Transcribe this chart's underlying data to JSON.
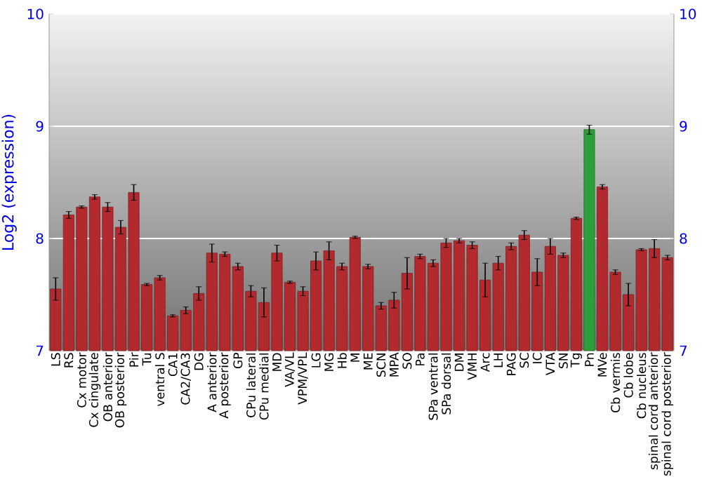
{
  "chart_data": {
    "type": "bar",
    "ylabel": "Log2 (expression)",
    "categories": [
      "LS",
      "RS",
      "Cx motor",
      "Cx cingulate",
      "OB anterior",
      "OB posterior",
      "Pir",
      "Tu",
      "ventral S",
      "CA1",
      "CA2/CA3",
      "DG",
      "A anterior",
      "A posterior",
      "GP",
      "CPu lateral",
      "CPu medial",
      "MD",
      "VA/VL",
      "VPM/VPL",
      "LG",
      "MG",
      "Hb",
      "M",
      "ME",
      "SCN",
      "MPA",
      "SO",
      "Pa",
      "SPa ventral",
      "SPa dorsal",
      "DM",
      "VMH",
      "Arc",
      "LH",
      "PAG",
      "SC",
      "IC",
      "VTA",
      "SN",
      "Tg",
      "Pn",
      "MVe",
      "Cb vermis",
      "Cb lobe",
      "Cb nucleus",
      "spinal cord anterior",
      "spinal cord posterior"
    ],
    "values": [
      7.55,
      8.21,
      8.28,
      8.37,
      8.28,
      8.1,
      8.41,
      7.59,
      7.65,
      7.31,
      7.36,
      7.51,
      7.87,
      7.86,
      7.75,
      7.53,
      7.43,
      7.87,
      7.61,
      7.53,
      7.8,
      7.89,
      7.75,
      8.01,
      7.75,
      7.4,
      7.45,
      7.69,
      7.84,
      7.78,
      7.96,
      7.98,
      7.94,
      7.63,
      7.78,
      7.93,
      8.03,
      7.7,
      7.93,
      7.85,
      8.18,
      8.97,
      8.46,
      7.7,
      7.5,
      7.9,
      7.91,
      7.83
    ],
    "errors": [
      0.1,
      0.03,
      0.01,
      0.02,
      0.04,
      0.06,
      0.07,
      0.01,
      0.02,
      0.01,
      0.03,
      0.06,
      0.08,
      0.02,
      0.03,
      0.05,
      0.13,
      0.07,
      0.01,
      0.04,
      0.08,
      0.08,
      0.03,
      0.01,
      0.02,
      0.03,
      0.07,
      0.14,
      0.02,
      0.03,
      0.04,
      0.02,
      0.03,
      0.15,
      0.06,
      0.03,
      0.04,
      0.12,
      0.07,
      0.02,
      0.01,
      0.04,
      0.02,
      0.02,
      0.1,
      0.01,
      0.08,
      0.02
    ],
    "colors": [
      "#b22a2e",
      "#b22a2e",
      "#b22a2e",
      "#b22a2e",
      "#b22a2e",
      "#b22a2e",
      "#b22a2e",
      "#b22a2e",
      "#b22a2e",
      "#b22a2e",
      "#b22a2e",
      "#b22a2e",
      "#b22a2e",
      "#b22a2e",
      "#b22a2e",
      "#b22a2e",
      "#b22a2e",
      "#b22a2e",
      "#b22a2e",
      "#b22a2e",
      "#b22a2e",
      "#b22a2e",
      "#b22a2e",
      "#b22a2e",
      "#b22a2e",
      "#b22a2e",
      "#b22a2e",
      "#b22a2e",
      "#b22a2e",
      "#b22a2e",
      "#b22a2e",
      "#b22a2e",
      "#b22a2e",
      "#b22a2e",
      "#b22a2e",
      "#b22a2e",
      "#b22a2e",
      "#b22a2e",
      "#b22a2e",
      "#b22a2e",
      "#b22a2e",
      "#2e9e3a",
      "#b22a2e",
      "#b22a2e",
      "#b22a2e",
      "#b22a2e",
      "#b22a2e",
      "#b22a2e"
    ],
    "ylim": [
      7,
      10
    ],
    "yticks": [
      7,
      8,
      9,
      10
    ],
    "y2lim": [
      7,
      10
    ],
    "y2ticks": [
      7,
      8,
      9,
      10
    ],
    "grid": "y"
  }
}
